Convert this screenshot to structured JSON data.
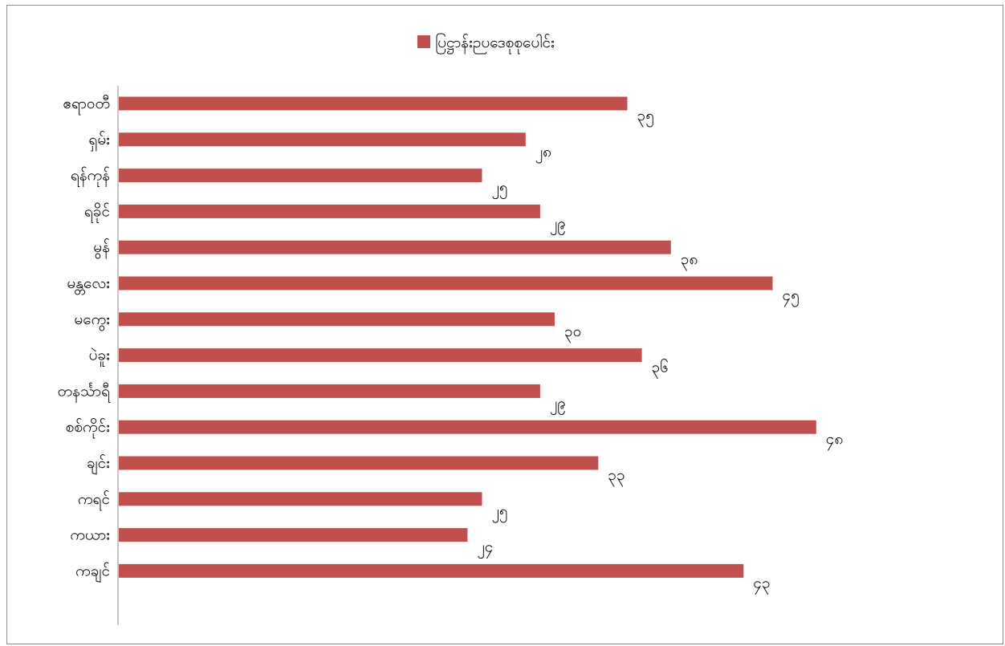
{
  "chart_data": {
    "type": "bar",
    "orientation": "horizontal",
    "categories": [
      "ဧရာဝတီ",
      "ရှမ်း",
      "ရန်ကုန်",
      "ရခိုင်",
      "မွန်",
      "မန္တလေး",
      "မကွေး",
      "ပဲခူး",
      "တနင်္သာရီ",
      "စစ်ကိုင်း",
      "ချင်း",
      "ကရင်",
      "ကယား",
      "ကချင်"
    ],
    "series": [
      {
        "name": "ပြဋ္ဌာန်းဉပဒေစုစုပေါင်း",
        "color": "#c0504d",
        "values": [
          35,
          28,
          25,
          29,
          38,
          45,
          30,
          36,
          29,
          48,
          33,
          25,
          24,
          43
        ],
        "value_labels": [
          "၃၅",
          "၂၈",
          "၂၅",
          "၂၉",
          "၃၈",
          "၄၅",
          "၃၀",
          "၃၆",
          "၂၉",
          "၄၈",
          "၃၃",
          "၂၅",
          "၂၄",
          "၄၃"
        ]
      }
    ],
    "xlim": [
      0,
      50
    ],
    "grid": false,
    "legend_position": "top-center",
    "show_x_axis_ticks": false
  }
}
